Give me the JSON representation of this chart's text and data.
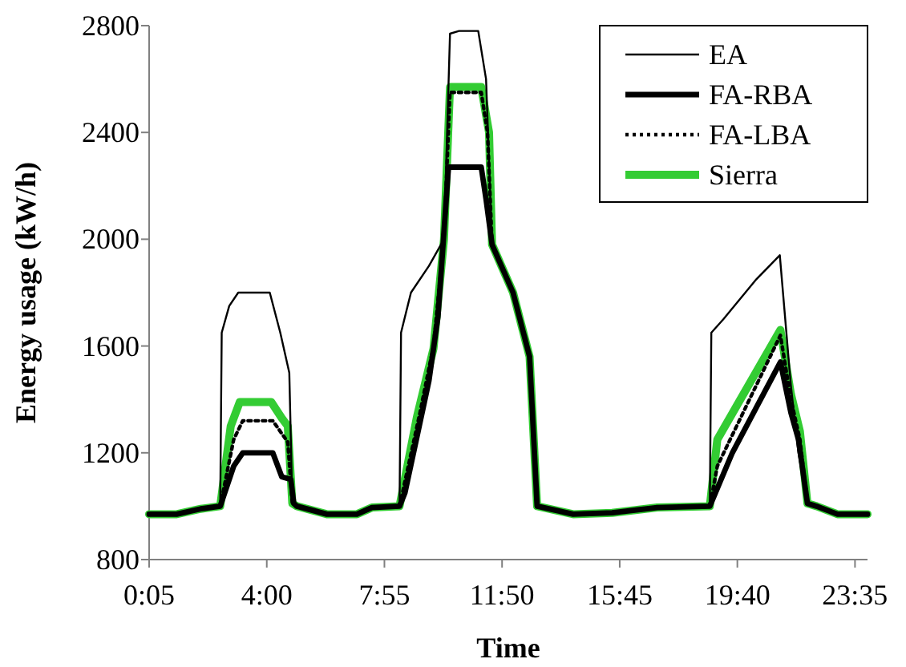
{
  "chart_data": {
    "type": "line",
    "xlabel": "Time",
    "ylabel": "Energy usage (kW/h)",
    "xlim": [
      0.0833,
      24
    ],
    "ylim": [
      800,
      2800
    ],
    "xticks": [
      {
        "value": 0.0833,
        "label": "0:05"
      },
      {
        "value": 4,
        "label": "4:00"
      },
      {
        "value": 7.9167,
        "label": "7:55"
      },
      {
        "value": 11.8333,
        "label": "11:50"
      },
      {
        "value": 15.75,
        "label": "15:45"
      },
      {
        "value": 19.6667,
        "label": "19:40"
      },
      {
        "value": 23.5833,
        "label": "23:35"
      }
    ],
    "yticks": [
      800,
      1200,
      1600,
      2000,
      2400,
      2800
    ],
    "grid": false,
    "legend": "top right",
    "marker": "none",
    "series": [
      {
        "name": "EA",
        "color": "#000000",
        "line_style": "solid",
        "x": [
          0.0833,
          1,
          1.8,
          2.45,
          2.5,
          2.75,
          3.05,
          4.1,
          4.45,
          4.75,
          4.85,
          5,
          6,
          7,
          7.5,
          8.42,
          8.47,
          8.8,
          9.4,
          9.9,
          10.1,
          10.4,
          11.04,
          11.3,
          11.5,
          12.2,
          12.75,
          13,
          14.2,
          15.5,
          17,
          18.75,
          18.8,
          19.2,
          20.3,
          21.08,
          21.45,
          21.7,
          22,
          22.3,
          23,
          24
        ],
        "values": [
          970,
          970,
          990,
          1000,
          1650,
          1750,
          1800,
          1800,
          1650,
          1500,
          1010,
          1000,
          970,
          970,
          995,
          1000,
          1650,
          1800,
          1900,
          2000,
          2770,
          2780,
          2780,
          2600,
          1980,
          1800,
          1560,
          1000,
          970,
          975,
          995,
          1000,
          1650,
          1700,
          1850,
          1940,
          1450,
          1200,
          1010,
          1000,
          970,
          970
        ]
      },
      {
        "name": "FA-RBA",
        "color": "#000000",
        "line_style": "solid",
        "x": [
          0.0833,
          1,
          1.8,
          2.45,
          2.9,
          3.2,
          4.2,
          4.5,
          4.8,
          4.9,
          5,
          6,
          7,
          7.5,
          8.42,
          8.6,
          9.4,
          9.7,
          10.05,
          11.14,
          11.3,
          11.5,
          12.2,
          12.75,
          13,
          14.2,
          15.5,
          17,
          18.75,
          19.5,
          21.1,
          21.45,
          21.7,
          22,
          22.3,
          23,
          24
        ],
        "values": [
          970,
          970,
          990,
          1000,
          1150,
          1200,
          1200,
          1110,
          1100,
          1010,
          1000,
          970,
          970,
          995,
          1000,
          1050,
          1470,
          1710,
          2270,
          2270,
          2150,
          1980,
          1800,
          1560,
          1000,
          970,
          975,
          995,
          1000,
          1200,
          1540,
          1350,
          1250,
          1010,
          1000,
          970,
          970
        ]
      },
      {
        "name": "FA-LBA",
        "color": "#000000",
        "line_style": "dotted",
        "x": [
          0.0833,
          1,
          1.8,
          2.45,
          2.9,
          3.2,
          4.2,
          4.7,
          4.85,
          5,
          6,
          7,
          7.5,
          8.42,
          9.1,
          9.55,
          9.9,
          10.1,
          11.14,
          11.35,
          11.5,
          12.2,
          12.75,
          13,
          14.2,
          15.5,
          17,
          18.75,
          19,
          21.1,
          21.45,
          21.75,
          22,
          22.3,
          23,
          24
        ],
        "values": [
          970,
          970,
          990,
          1000,
          1250,
          1320,
          1320,
          1240,
          1010,
          1000,
          970,
          970,
          995,
          1000,
          1350,
          1600,
          2000,
          2550,
          2550,
          2400,
          1980,
          1800,
          1560,
          1000,
          970,
          975,
          995,
          1000,
          1150,
          1640,
          1400,
          1250,
          1010,
          1000,
          970,
          970
        ]
      },
      {
        "name": "Sierra",
        "color": "#33cc33",
        "line_style": "solid",
        "x": [
          0.0833,
          1,
          1.8,
          2.45,
          2.8,
          3.1,
          4.15,
          4.5,
          4.7,
          4.85,
          5,
          6,
          7,
          7.5,
          8.42,
          9,
          9.55,
          9.9,
          10.1,
          11.14,
          11.4,
          11.5,
          12.2,
          12.75,
          13,
          14.2,
          15.5,
          17,
          18.75,
          19,
          21.1,
          21.45,
          21.75,
          22,
          22.3,
          23,
          24
        ],
        "values": [
          970,
          970,
          990,
          1000,
          1300,
          1390,
          1390,
          1330,
          1300,
          1010,
          1000,
          970,
          970,
          995,
          1000,
          1335,
          1590,
          2000,
          2570,
          2570,
          2400,
          1980,
          1800,
          1560,
          1000,
          970,
          975,
          995,
          1000,
          1250,
          1660,
          1420,
          1280,
          1010,
          1000,
          970,
          970
        ]
      }
    ]
  }
}
